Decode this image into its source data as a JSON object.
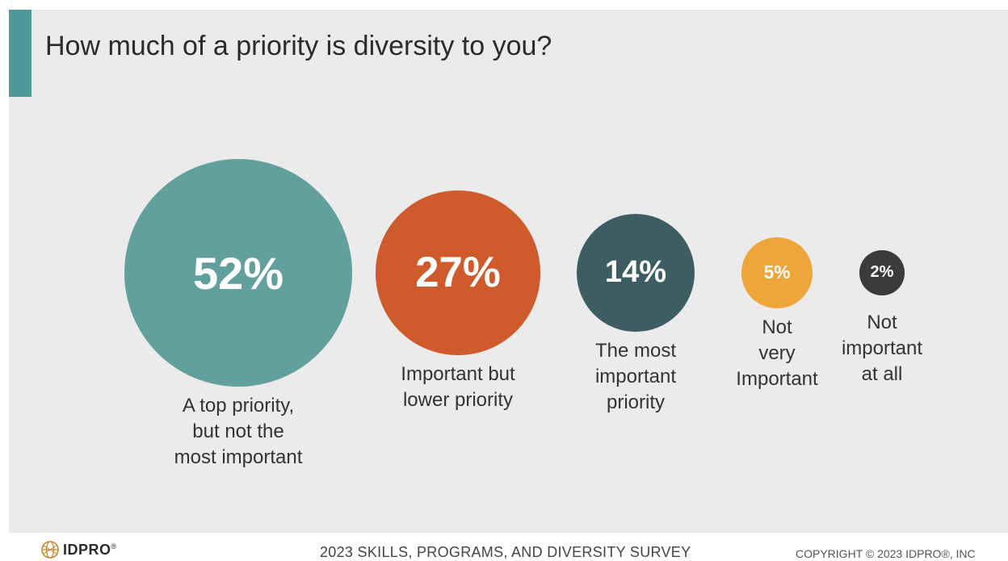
{
  "title": "How much of a priority is diversity to you?",
  "colors": {
    "accent": "#4f9a99",
    "background": "#ebebeb"
  },
  "chart_data": {
    "type": "bubble",
    "title": "How much of a priority is diversity to you?",
    "items": [
      {
        "value": 52,
        "label": "52%",
        "category": [
          "A top priority,",
          "but not the",
          "most important"
        ],
        "color": "#62a09e"
      },
      {
        "value": 27,
        "label": "27%",
        "category": [
          "Important but",
          "lower priority"
        ],
        "color": "#cf5a2c"
      },
      {
        "value": 14,
        "label": "14%",
        "category": [
          "The most",
          "important",
          "priority"
        ],
        "color": "#3e5d63"
      },
      {
        "value": 5,
        "label": "5%",
        "category": [
          "Not",
          "very",
          "Important"
        ],
        "color": "#eea63a"
      },
      {
        "value": 2,
        "label": "2%",
        "category": [
          "Not",
          "important",
          "at all"
        ],
        "color": "#3b3b3b"
      }
    ]
  },
  "footer": {
    "logo_text": "IDPRO",
    "logo_mark": "®",
    "logo_icon": "idpro-globe-icon",
    "survey": "2023 SKILLS, PROGRAMS, AND DIVERSITY SURVEY",
    "copyright": "COPYRIGHT © 2023 IDPRO®, INC"
  }
}
